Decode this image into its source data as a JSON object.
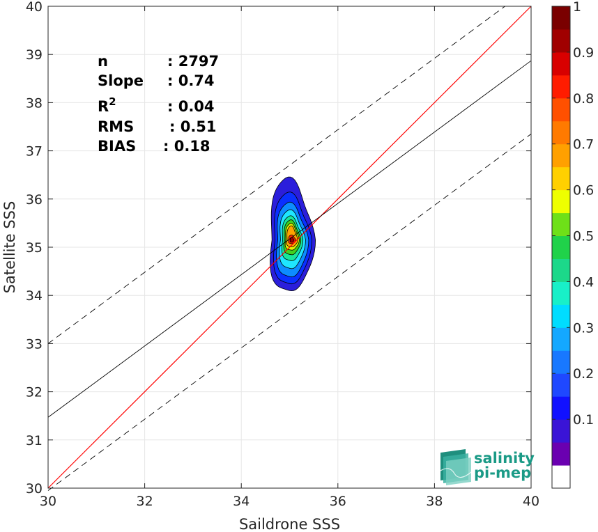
{
  "chart_data": {
    "type": "scatter",
    "xlabel": "Saildrone SSS",
    "ylabel": "Satellite SSS",
    "xlim": [
      30,
      40
    ],
    "ylim": [
      30,
      40
    ],
    "x_ticks": [
      "30",
      "32",
      "34",
      "36",
      "38",
      "40"
    ],
    "y_ticks": [
      "30",
      "31",
      "32",
      "33",
      "34",
      "35",
      "36",
      "37",
      "38",
      "39",
      "40"
    ],
    "grid": true,
    "stats": [
      {
        "label": "n",
        "value": ": 2797"
      },
      {
        "label": "Slope",
        "value": ": 0.74"
      },
      {
        "label": "R",
        "sup": "2",
        "value": ": 0.04"
      },
      {
        "label": "RMS",
        "value": ": 0.51"
      },
      {
        "label": "BIAS",
        "value": ": 0.18"
      }
    ],
    "lines": {
      "identity": {
        "slope": 1,
        "intercept": 0,
        "color": "#ff0000"
      },
      "regression": {
        "slope": 0.74,
        "x_start": 30,
        "y_start": 31.47,
        "color": "#000000"
      },
      "upper_bound": {
        "slope": 0.74,
        "x_start": 30,
        "y_start": 33.0,
        "style": "dashed"
      },
      "lower_bound": {
        "slope": 0.74,
        "x_start": 30,
        "y_start": 29.95,
        "style": "dashed"
      }
    },
    "density_contours": {
      "center": [
        35.05,
        35.15
      ],
      "levels": [
        {
          "level": 0.05,
          "rx": 0.45,
          "ry_top": 1.25,
          "ry_bot": 1.1,
          "color": "#2b1edb"
        },
        {
          "level": 0.15,
          "rx": 0.38,
          "ry_top": 0.95,
          "ry_bot": 0.95,
          "color": "#0a30ff"
        },
        {
          "level": 0.25,
          "rx": 0.32,
          "ry_top": 0.75,
          "ry_bot": 0.8,
          "color": "#0d8cff"
        },
        {
          "level": 0.35,
          "rx": 0.26,
          "ry_top": 0.6,
          "ry_bot": 0.62,
          "color": "#1fe6ff"
        },
        {
          "level": 0.45,
          "rx": 0.21,
          "ry_top": 0.48,
          "ry_bot": 0.45,
          "color": "#18e69b"
        },
        {
          "level": 0.55,
          "rx": 0.17,
          "ry_top": 0.4,
          "ry_bot": 0.32,
          "color": "#41d11f"
        },
        {
          "level": 0.65,
          "rx": 0.14,
          "ry_top": 0.33,
          "ry_bot": 0.22,
          "color": "#e6f000"
        },
        {
          "level": 0.75,
          "rx": 0.11,
          "ry_top": 0.28,
          "ry_bot": 0.15,
          "color": "#ffa200"
        },
        {
          "level": 0.85,
          "rx": 0.07,
          "ry_top": 0.1,
          "ry_bot": 0.08,
          "color": "#ff2800"
        },
        {
          "level": 0.95,
          "rx": 0.04,
          "ry_top": 0.05,
          "ry_bot": 0.05,
          "color": "#a00000"
        }
      ]
    },
    "colorbar": {
      "ticks": [
        "0.1",
        "0.2",
        "0.3",
        "0.4",
        "0.5",
        "0.6",
        "0.7",
        "0.8",
        "0.9",
        "1"
      ],
      "colors": [
        "#6a00b0",
        "#3a14d6",
        "#1111ff",
        "#1f48ff",
        "#1878ff",
        "#14a8ff",
        "#00ddff",
        "#18f0c8",
        "#1cd88a",
        "#20d24a",
        "#6ee018",
        "#eeff00",
        "#ffd000",
        "#ffa000",
        "#ff7a00",
        "#ff5000",
        "#ff1c00",
        "#d80000",
        "#a00000",
        "#7a0000"
      ]
    }
  },
  "logo": {
    "line1": "salinity",
    "line2": "pi-mep",
    "color": "#1a9a86"
  }
}
